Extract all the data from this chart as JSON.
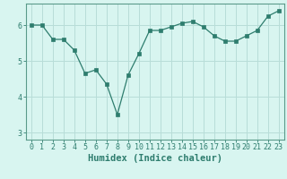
{
  "x": [
    0,
    1,
    2,
    3,
    4,
    5,
    6,
    7,
    8,
    9,
    10,
    11,
    12,
    13,
    14,
    15,
    16,
    17,
    18,
    19,
    20,
    21,
    22,
    23
  ],
  "y": [
    6.0,
    6.0,
    5.6,
    5.6,
    5.3,
    4.65,
    4.75,
    4.35,
    3.5,
    4.6,
    5.2,
    5.85,
    5.85,
    5.95,
    6.05,
    6.1,
    5.95,
    5.7,
    5.55,
    5.55,
    5.7,
    5.85,
    6.25,
    6.4
  ],
  "line_color": "#2e7d6e",
  "marker": "s",
  "marker_size": 2.5,
  "bg_color": "#d8f5f0",
  "grid_color": "#b8ddd8",
  "xlabel": "Humidex (Indice chaleur)",
  "xlim": [
    -0.5,
    23.5
  ],
  "ylim": [
    2.8,
    6.6
  ],
  "yticks": [
    3,
    4,
    5,
    6
  ],
  "xticks": [
    0,
    1,
    2,
    3,
    4,
    5,
    6,
    7,
    8,
    9,
    10,
    11,
    12,
    13,
    14,
    15,
    16,
    17,
    18,
    19,
    20,
    21,
    22,
    23
  ],
  "tick_fontsize": 6,
  "xlabel_fontsize": 7.5,
  "axis_color": "#2e7d6e",
  "spine_color": "#5a9a8a"
}
